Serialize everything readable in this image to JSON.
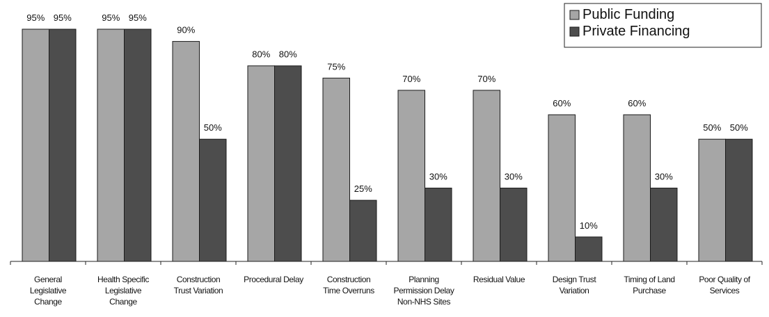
{
  "chart_data": {
    "type": "bar",
    "categories": [
      [
        "General",
        "Legislative",
        "Change"
      ],
      [
        "Health Specific",
        "Legislative",
        "Change"
      ],
      [
        "Construction",
        "Trust Variation"
      ],
      [
        "Procedural Delay"
      ],
      [
        "Construction",
        "Time Overruns"
      ],
      [
        "Planning",
        "Permission Delay",
        "Non-NHS Sites"
      ],
      [
        "Residual Value"
      ],
      [
        "Design Trust",
        "Variation"
      ],
      [
        "Timing of Land",
        "Purchase"
      ],
      [
        "Poor Quality of",
        "Services"
      ]
    ],
    "series": [
      {
        "name": "Public Funding",
        "color": "#a6a6a6",
        "values": [
          95,
          95,
          90,
          80,
          75,
          70,
          70,
          60,
          60,
          50
        ],
        "labels": [
          "95%",
          "95%",
          "90%",
          "80%",
          "75%",
          "70%",
          "70%",
          "60%",
          "60%",
          "50%"
        ]
      },
      {
        "name": "Private Financing",
        "color": "#4d4d4d",
        "values": [
          95,
          95,
          50,
          80,
          25,
          30,
          30,
          10,
          30,
          50
        ],
        "labels": [
          "95%",
          "95%",
          "50%",
          "80%",
          "25%",
          "30%",
          "30%",
          "10%",
          "30%",
          "50%"
        ]
      }
    ],
    "ylim": [
      0,
      100
    ],
    "grid": false,
    "legend": "top-right"
  }
}
